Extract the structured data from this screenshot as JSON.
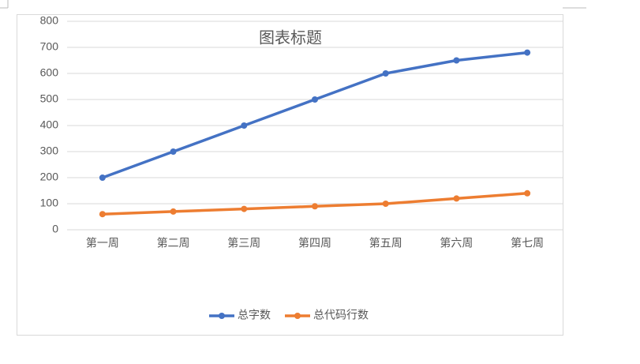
{
  "chart_data": {
    "type": "line",
    "title": "图表标题",
    "categories": [
      "第一周",
      "第二周",
      "第三周",
      "第四周",
      "第五周",
      "第六周",
      "第七周"
    ],
    "series": [
      {
        "name": "总字数",
        "color": "#4472c4",
        "values": [
          200,
          300,
          400,
          500,
          600,
          650,
          680
        ]
      },
      {
        "name": "总代码行数",
        "color": "#ed7d31",
        "values": [
          60,
          70,
          80,
          90,
          100,
          120,
          140
        ]
      }
    ],
    "ylim": [
      0,
      800
    ],
    "yticks": [
      0,
      100,
      200,
      300,
      400,
      500,
      600,
      700,
      800
    ],
    "grid": true,
    "legend": "bottom"
  }
}
